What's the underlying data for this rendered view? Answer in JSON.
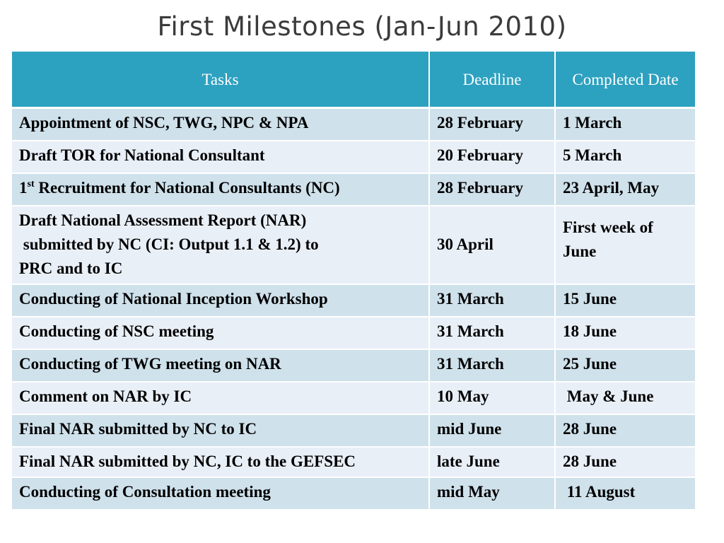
{
  "title": "First Milestones (Jan-Jun 2010)",
  "table": {
    "headers": [
      "Tasks",
      "Deadline",
      "Completed Date"
    ],
    "rows": [
      {
        "task_line1": "Appointment of NSC, TWG, NPC & NPA",
        "task_line2": "",
        "task_line3": "",
        "deadline": "28 February",
        "completed": "1 March"
      },
      {
        "task_line1": "Draft TOR for National Consultant",
        "task_line2": "",
        "task_line3": "",
        "deadline": "20 February",
        "completed": "5 March"
      },
      {
        "task_prefix": "1",
        "task_sup": "st",
        "task_line1": " Recruitment for National Consultants (NC)",
        "deadline": "28 February",
        "completed": "23 April, May"
      },
      {
        "task_line1": "Draft National Assessment Report  (NAR)",
        "task_line2": " submitted by NC (CI: Output 1.1 & 1.2) to",
        "task_line3": "PRC and to IC",
        "deadline": "30 April",
        "completed": "First week of June"
      },
      {
        "task_line1": "Conducting of National Inception Workshop",
        "deadline": "31 March",
        "completed": "15 June"
      },
      {
        "task_line1": "Conducting of NSC meeting",
        "deadline": "31 March",
        "completed": "18 June"
      },
      {
        "task_line1": "Conducting of TWG meeting on NAR",
        "deadline": "31 March",
        "completed": "25 June"
      },
      {
        "task_line1": "Comment on NAR by IC",
        "deadline": "10 May",
        "completed": " May & June"
      },
      {
        "task_line1": "Final NAR submitted by NC to IC",
        "deadline": "mid June",
        "completed": "28 June"
      },
      {
        "task_line1": "Final NAR submitted by NC, IC to the GEFSEC",
        "deadline": "late June",
        "completed": "28 June"
      },
      {
        "task_line1": "Conducting of Consultation meeting",
        "deadline": "mid May",
        "completed": " 11 August"
      }
    ]
  },
  "colors": {
    "header_bg": "#2da1c0",
    "row_odd": "#cfe1eb",
    "row_even": "#e9eff7",
    "title_text": "#3b3b3b"
  }
}
